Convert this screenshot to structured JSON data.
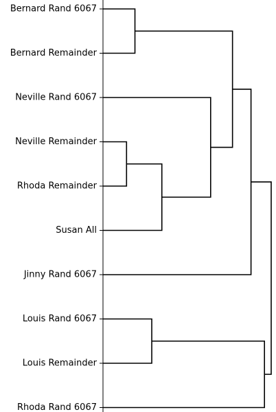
{
  "chart_data": {
    "type": "dendrogram",
    "orientation": "horizontal",
    "leaves": [
      "Bernard Rand 6067",
      "Bernard Remainder",
      "Neville Rand 6067",
      "Neville Remainder",
      "Rhoda Remainder",
      "Susan All",
      "Jinny Rand 6067",
      "Louis Rand 6067",
      "Louis Remainder",
      "Rhoda Rand 6067"
    ],
    "merges": [
      {
        "a": "Neville Remainder",
        "b": "Rhoda Remainder",
        "height": 0.14
      },
      {
        "a": "Bernard Rand 6067",
        "b": "Bernard Remainder",
        "height": 0.19
      },
      {
        "a": "Louis Rand 6067",
        "b": "Louis Remainder",
        "height": 0.29
      },
      {
        "a": "Neville Remainder + Rhoda Remainder",
        "b": "Susan All",
        "height": 0.35
      },
      {
        "a": "Neville Rand 6067",
        "b": "Neville Remainder + Rhoda Remainder + Susan All",
        "height": 0.64
      },
      {
        "a": "Bernard Rand 6067 + Bernard Remainder",
        "b": "Neville Rand 6067 + Neville Remainder + Rhoda Remainder + Susan All",
        "height": 0.77
      },
      {
        "a": "Bernard + Neville + Rhoda Remainder + Susan cluster",
        "b": "Jinny Rand 6067",
        "height": 0.88
      },
      {
        "a": "Louis Rand 6067 + Louis Remainder",
        "b": "Rhoda Rand 6067",
        "height": 0.96
      },
      {
        "a": "all upper leaves",
        "b": "Louis + Rhoda Rand 6067 cluster",
        "height": 1.0
      }
    ]
  }
}
